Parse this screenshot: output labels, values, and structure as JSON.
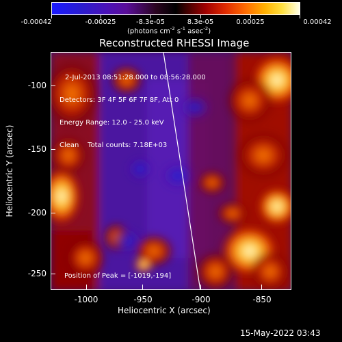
{
  "colorbar": {
    "tick_labels": [
      "-0.00042",
      "-0.00025",
      "-8.3e-05",
      "8.3e-05",
      "0.00025",
      "0.00042"
    ],
    "range": [
      -0.00042,
      0.00042
    ],
    "units_prefix": "(photons cm",
    "units_exp1": "-2",
    "units_mid": " s",
    "units_exp2": "-1",
    "units_mid2": " asec",
    "units_exp3": "-2",
    "units_suffix": ")"
  },
  "plot": {
    "title": "Reconstructed RHESSI Image",
    "info_lines": [
      "2-Jul-2013 08:51:28.000 to 08:56:28.000",
      "Detectors: 3F 4F 5F 6F 7F 8F, Att 0",
      "Energy Range: 12.0 - 25.0 keV",
      "Clean    Total counts: 7.18E+03"
    ],
    "peak_label": "Position of Peak = [-1019,-194]",
    "xlabel": "Heliocentric X (arcsec)",
    "ylabel": "Heliocentric Y (arcsec)",
    "xticks": [
      "-1000",
      "-950",
      "-900",
      "-850"
    ],
    "yticks": [
      "-100",
      "-150",
      "-200",
      "-250"
    ],
    "xlim": [
      -1025,
      -833
    ],
    "ylim": [
      -266,
      -78
    ]
  },
  "footer": {
    "date": "15-May-2022 03:43"
  },
  "colors": {
    "background": "#000000",
    "limb_line": "#ffffff"
  }
}
